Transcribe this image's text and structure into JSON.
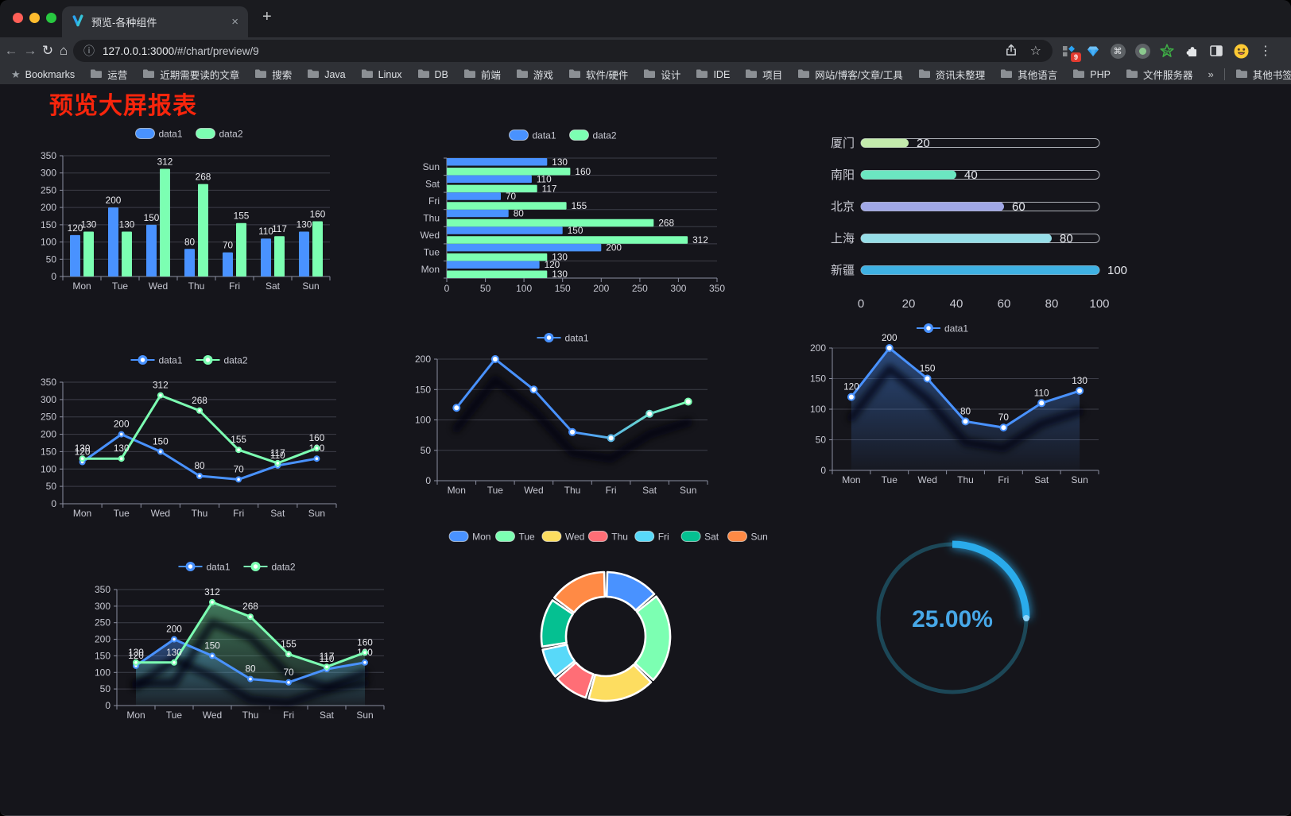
{
  "browser": {
    "tab_title": "预览-各种组件",
    "url_host": "127.0.0.1:3000",
    "url_path": "/#/chart/preview/9",
    "bookmarks_label": "Bookmarks",
    "bookmark_folders": [
      "运营",
      "近期需要读的文章",
      "搜索",
      "Java",
      "Linux",
      "DB",
      "前端",
      "游戏",
      "软件/硬件",
      "设计",
      "IDE",
      "项目",
      "网站/博客/文章/工具",
      "资讯未整理",
      "其他语言",
      "PHP",
      "文件服务器"
    ],
    "other_bookmarks_label": "其他书签",
    "extensions_badge": "9",
    "icons": {
      "back": "←",
      "forward": "→",
      "reload": "↻",
      "home": "⌂",
      "info": "ⓘ",
      "star": "☆",
      "bookmarks_star": "★",
      "menu": "⋮",
      "new_tab": "+",
      "close_tab": "×",
      "command": "⌘",
      "overflow": "»"
    }
  },
  "page": {
    "title": "预览大屏报表",
    "title_color": "#f8250c"
  },
  "chart_data": [
    {
      "id": "grouped-bar",
      "type": "bar",
      "categories": [
        "Mon",
        "Tue",
        "Wed",
        "Thu",
        "Fri",
        "Sat",
        "Sun"
      ],
      "series": [
        {
          "name": "data1",
          "color": "#4992ff",
          "values": [
            120,
            200,
            150,
            80,
            70,
            110,
            130
          ]
        },
        {
          "name": "data2",
          "color": "#7cffb2",
          "values": [
            130,
            130,
            312,
            268,
            155,
            117,
            160
          ]
        }
      ],
      "ylim": [
        0,
        350
      ],
      "ytick_step": 50,
      "grid": true,
      "legend_position": "top"
    },
    {
      "id": "horizontal-bar",
      "type": "hbar",
      "categories": [
        "Mon",
        "Tue",
        "Wed",
        "Thu",
        "Fri",
        "Sat",
        "Sun"
      ],
      "series": [
        {
          "name": "data1",
          "color": "#4992ff",
          "values": [
            120,
            200,
            150,
            80,
            70,
            110,
            130
          ]
        },
        {
          "name": "data2",
          "color": "#7cffb2",
          "values": [
            130,
            130,
            312,
            268,
            155,
            117,
            160
          ]
        }
      ],
      "xlim": [
        0,
        350
      ],
      "xtick_step": 50,
      "grid": true,
      "legend_position": "top"
    },
    {
      "id": "progress-bars",
      "type": "progress",
      "max": 100,
      "ticks": [
        0,
        20,
        40,
        60,
        80,
        100
      ],
      "rows": [
        {
          "label": "厦门",
          "value": 20,
          "color": "#c4ebad"
        },
        {
          "label": "南阳",
          "value": 40,
          "color": "#6be6c1"
        },
        {
          "label": "北京",
          "value": 60,
          "color": "#a0a7e6"
        },
        {
          "label": "上海",
          "value": 80,
          "color": "#96dee8"
        },
        {
          "label": "新疆",
          "value": 100,
          "color": "#3fb1e3"
        }
      ]
    },
    {
      "id": "two-series-line",
      "type": "line",
      "categories": [
        "Mon",
        "Tue",
        "Wed",
        "Thu",
        "Fri",
        "Sat",
        "Sun"
      ],
      "series": [
        {
          "name": "data1",
          "color": "#4992ff",
          "values": [
            120,
            200,
            150,
            80,
            70,
            110,
            130
          ]
        },
        {
          "name": "data2",
          "color": "#7cffb2",
          "values": [
            130,
            130,
            312,
            268,
            155,
            117,
            160
          ]
        }
      ],
      "ylim": [
        0,
        350
      ],
      "ytick_step": 50,
      "labels": true,
      "marker": "dot",
      "legend_position": "top"
    },
    {
      "id": "gradient-line-shadow",
      "type": "line",
      "categories": [
        "Mon",
        "Tue",
        "Wed",
        "Thu",
        "Fri",
        "Sat",
        "Sun"
      ],
      "series": [
        {
          "name": "data1",
          "color": "#4992ff",
          "gradient_to": "#7cffb2",
          "values": [
            120,
            200,
            150,
            80,
            70,
            110,
            130
          ]
        }
      ],
      "ylim": [
        0,
        200
      ],
      "ytick_step": 50,
      "labels": false,
      "marker": "ring",
      "shadow": true,
      "legend_position": "top"
    },
    {
      "id": "area-line",
      "type": "line",
      "categories": [
        "Mon",
        "Tue",
        "Wed",
        "Thu",
        "Fri",
        "Sat",
        "Sun"
      ],
      "series": [
        {
          "name": "data1",
          "color": "#4992ff",
          "area": true,
          "values": [
            120,
            200,
            150,
            80,
            70,
            110,
            130
          ]
        }
      ],
      "ylim": [
        0,
        200
      ],
      "ytick_step": 50,
      "labels": true,
      "marker": "ring",
      "shadow": true,
      "legend_position": "top"
    },
    {
      "id": "two-series-area",
      "type": "line",
      "categories": [
        "Mon",
        "Tue",
        "Wed",
        "Thu",
        "Fri",
        "Sat",
        "Sun"
      ],
      "series": [
        {
          "name": "data1",
          "color": "#4992ff",
          "area": true,
          "values": [
            120,
            200,
            150,
            80,
            70,
            110,
            130
          ]
        },
        {
          "name": "data2",
          "color": "#7cffb2",
          "area": true,
          "values": [
            130,
            130,
            312,
            268,
            155,
            117,
            160
          ]
        }
      ],
      "ylim": [
        0,
        350
      ],
      "ytick_step": 50,
      "labels": true,
      "marker": "dot",
      "shadow": true,
      "legend_position": "top"
    },
    {
      "id": "donut",
      "type": "donut",
      "labels": [
        "Mon",
        "Tue",
        "Wed",
        "Thu",
        "Fri",
        "Sat",
        "Sun"
      ],
      "values": [
        120,
        200,
        150,
        80,
        70,
        110,
        130
      ],
      "colors": [
        "#4992ff",
        "#7cffb2",
        "#fddd60",
        "#ff6e76",
        "#58d9f9",
        "#05c091",
        "#ff8a45"
      ],
      "border_color": "#ffffff",
      "legend_position": "top"
    },
    {
      "id": "gauge",
      "type": "gauge",
      "percent": 25,
      "display": "25.00%",
      "color": "#2aabeb",
      "track_color": "#1c4757",
      "text_color": "#47a8e8"
    }
  ]
}
